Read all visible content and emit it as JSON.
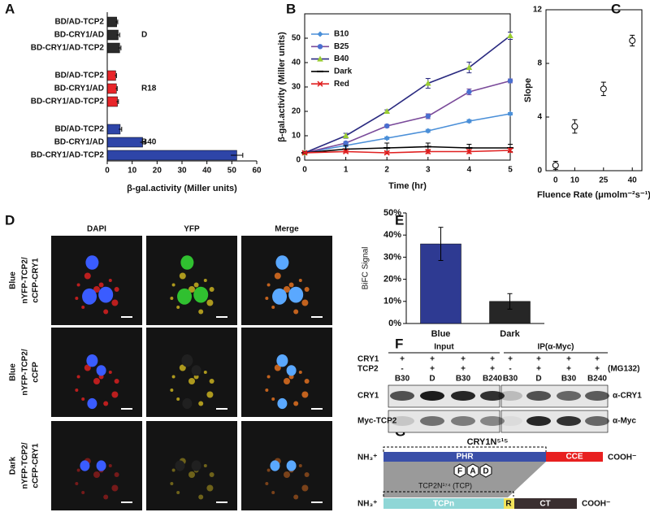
{
  "panel_labels": [
    "A",
    "B",
    "C",
    "D",
    "E",
    "F",
    "G"
  ],
  "chart_data": [
    {
      "type": "hbar",
      "categories": [
        "BD/AD-TCP2",
        "BD-CRY1/AD",
        "BD-CRY1/AD-TCP2"
      ],
      "series": [
        {
          "name": "D",
          "color": "#2b2b2b",
          "values": [
            3.8,
            4.4,
            5.0
          ],
          "errors": [
            0.4,
            0.6,
            0.5
          ]
        },
        {
          "name": "R18",
          "color": "#e8262a",
          "values": [
            3.4,
            3.7,
            4.1
          ],
          "errors": [
            0.3,
            0.3,
            0.4
          ]
        },
        {
          "name": "B40",
          "color": "#2e45a8",
          "values": [
            5.2,
            14.2,
            52.0
          ],
          "errors": [
            0.6,
            1.0,
            2.4
          ]
        }
      ],
      "xlabel": "β-gal.activity (Miller units)",
      "xlim": [
        0,
        60
      ],
      "xticks": [
        0,
        10,
        20,
        30,
        40,
        50,
        60
      ]
    },
    {
      "type": "line",
      "x": [
        0,
        1,
        2,
        3,
        4,
        5
      ],
      "xlim": [
        0,
        5
      ],
      "xticks": [
        0,
        1,
        2,
        3,
        4,
        5
      ],
      "ylim": [
        0,
        60
      ],
      "yticks": [
        0,
        10,
        20,
        30,
        40,
        50
      ],
      "xlabel": "Time (hr)",
      "ylabel": "β-gal.activity (Miller units)",
      "legend": "upper left",
      "series": [
        {
          "name": "B10",
          "color": "#4a8fd8",
          "marker": "diamond",
          "marker_color": "#4a8fd8",
          "values": [
            3,
            6,
            9,
            12,
            16,
            19
          ],
          "errors": [
            0.3,
            0.5,
            0.5,
            0.6,
            0.6,
            0.5
          ]
        },
        {
          "name": "B25",
          "color": "#7a4a9a",
          "marker": "circle",
          "marker_color": "#4a6fd0",
          "values": [
            3,
            7,
            14,
            18,
            28,
            32.5
          ],
          "errors": [
            0.3,
            0.6,
            0.6,
            1.0,
            1.2,
            0.8
          ]
        },
        {
          "name": "B40",
          "color": "#2a2a80",
          "marker": "triangle",
          "marker_color": "#9acd32",
          "values": [
            3,
            10,
            20,
            31.5,
            38,
            51
          ],
          "errors": [
            0.3,
            1.0,
            0.6,
            2.0,
            2.2,
            1.5
          ]
        },
        {
          "name": "Dark",
          "color": "#000000",
          "marker": "dash",
          "marker_color": "#000000",
          "values": [
            3,
            4.5,
            5,
            5.5,
            5,
            5
          ],
          "errors": [
            0.5,
            1.5,
            2.0,
            1.5,
            1.5,
            1.5
          ]
        },
        {
          "name": "Red",
          "color": "#e02020",
          "marker": "cross",
          "marker_color": "#e02020",
          "values": [
            3,
            3.5,
            3,
            3.5,
            3.5,
            4
          ],
          "errors": [
            0.3,
            0.5,
            0.5,
            0.8,
            0.8,
            0.8
          ]
        }
      ]
    },
    {
      "type": "scatter",
      "x": [
        0,
        10,
        25,
        40
      ],
      "values": [
        0.4,
        3.3,
        6.1,
        9.7
      ],
      "errors": [
        0.3,
        0.5,
        0.5,
        0.4
      ],
      "xlim": [
        -5,
        45
      ],
      "xticks": [
        0,
        10,
        25,
        40
      ],
      "ylim": [
        0,
        12
      ],
      "yticks": [
        0,
        4,
        8,
        12
      ],
      "xlabel": "Fluence Rate (μmolm⁻²s⁻¹)",
      "ylabel": "Slope"
    },
    {
      "type": "bar",
      "categories": [
        "Blue",
        "Dark"
      ],
      "values": [
        36,
        10
      ],
      "errors": [
        7.5,
        3.5
      ],
      "colors": [
        "#2e3a92",
        "#262626"
      ],
      "ylim": [
        0,
        50
      ],
      "yticks": [
        {
          "value": 0,
          "label": "0%"
        },
        {
          "value": 10,
          "label": "10%"
        },
        {
          "value": 20,
          "label": "20%"
        },
        {
          "value": 30,
          "label": "30%"
        },
        {
          "value": 40,
          "label": "40%"
        },
        {
          "value": 50,
          "label": "50%"
        }
      ],
      "ylabel": "BiFC Signal"
    }
  ],
  "microscopy": {
    "columns": [
      "DAPI",
      "YFP",
      "Merge"
    ],
    "rows": [
      {
        "condition": "Blue",
        "construct": [
          "nYFP-TCP2/",
          "cCFP-CRY1"
        ]
      },
      {
        "condition": "Blue",
        "construct": [
          "nYFP-TCP2/",
          "cCFP"
        ]
      },
      {
        "condition": "Dark",
        "construct": [
          "nYFP-TCP2/",
          "cCFP-CRY1"
        ]
      }
    ]
  },
  "blot": {
    "headers": [
      "Input",
      "IP(α-Myc)"
    ],
    "conditions": [
      {
        "label": "CRY1",
        "signs": [
          "+",
          "+",
          "+",
          "+",
          "+",
          "+",
          "+",
          "+"
        ]
      },
      {
        "label": "TCP2",
        "signs": [
          "-",
          "+",
          "+",
          "+",
          "-",
          "+",
          "+",
          "+"
        ]
      }
    ],
    "treatments": [
      "B30",
      "D",
      "B30",
      "B240",
      "B30",
      "D",
      "B30",
      "B240"
    ],
    "treatment_note": "(MG132)",
    "blots": [
      {
        "label": "CRY1",
        "antibody": "α-CRY1"
      },
      {
        "label": "Myc-TCP2",
        "antibody": "α-Myc"
      }
    ]
  },
  "domain_diagram": {
    "cry1": {
      "title": "CRY1N⁵¹⁵",
      "n_term": "NH₃⁺",
      "domains": [
        "PHR",
        "CCE"
      ],
      "c_term": "COOH⁻"
    },
    "cofactor": [
      "F",
      "A",
      "D"
    ],
    "tcp2": {
      "title": "TCP2N¹⁷⁴ (TCP)",
      "n_term": "NH₃⁺",
      "domains": [
        "TCPn",
        "R",
        "CT"
      ],
      "c_term": "COOH⁻"
    }
  }
}
